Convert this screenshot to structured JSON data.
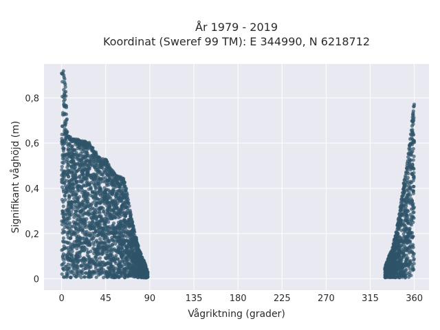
{
  "chart_data": {
    "type": "scatter",
    "title": "År 1979 - 2019",
    "subtitle": "Koordinat (Sweref 99 TM): E 344990, N 6218712",
    "xlabel": "Vågriktning (grader)",
    "ylabel": "Signifikant våghöjd (m)",
    "xlim": [
      -18,
      375
    ],
    "ylim": [
      -0.05,
      0.95
    ],
    "xticks": [
      0,
      45,
      90,
      135,
      180,
      225,
      270,
      315,
      360
    ],
    "xtick_labels": [
      "0",
      "45",
      "90",
      "135",
      "180",
      "225",
      "270",
      "315",
      "360"
    ],
    "yticks": [
      0,
      0.2,
      0.4,
      0.6,
      0.8
    ],
    "ytick_labels": [
      "0",
      "0,2",
      "0,4",
      "0,6",
      "0,8"
    ],
    "grid": true,
    "marker_color": "#2f5469",
    "background_color": "#e8e9f1",
    "envelope": [
      {
        "x": 0,
        "y_max": 0.92
      },
      {
        "x": 2,
        "y_max": 0.92
      },
      {
        "x": 4,
        "y_max": 0.85
      },
      {
        "x": 6,
        "y_max": 0.65
      },
      {
        "x": 10,
        "y_max": 0.62
      },
      {
        "x": 15,
        "y_max": 0.62
      },
      {
        "x": 20,
        "y_max": 0.61
      },
      {
        "x": 25,
        "y_max": 0.61
      },
      {
        "x": 30,
        "y_max": 0.6
      },
      {
        "x": 35,
        "y_max": 0.56
      },
      {
        "x": 40,
        "y_max": 0.53
      },
      {
        "x": 45,
        "y_max": 0.53
      },
      {
        "x": 50,
        "y_max": 0.49
      },
      {
        "x": 55,
        "y_max": 0.46
      },
      {
        "x": 60,
        "y_max": 0.45
      },
      {
        "x": 63,
        "y_max": 0.45
      },
      {
        "x": 66,
        "y_max": 0.4
      },
      {
        "x": 70,
        "y_max": 0.3
      },
      {
        "x": 75,
        "y_max": 0.2
      },
      {
        "x": 80,
        "y_max": 0.12
      },
      {
        "x": 85,
        "y_max": 0.07
      },
      {
        "x": 88,
        "y_max": 0.03
      },
      {
        "x": 330,
        "y_max": 0.05
      },
      {
        "x": 333,
        "y_max": 0.09
      },
      {
        "x": 337,
        "y_max": 0.13
      },
      {
        "x": 341,
        "y_max": 0.2
      },
      {
        "x": 345,
        "y_max": 0.3
      },
      {
        "x": 349,
        "y_max": 0.42
      },
      {
        "x": 353,
        "y_max": 0.52
      },
      {
        "x": 356,
        "y_max": 0.63
      },
      {
        "x": 358,
        "y_max": 0.72
      },
      {
        "x": 359,
        "y_max": 0.75
      },
      {
        "x": 360,
        "y_max": 0.79
      }
    ]
  }
}
